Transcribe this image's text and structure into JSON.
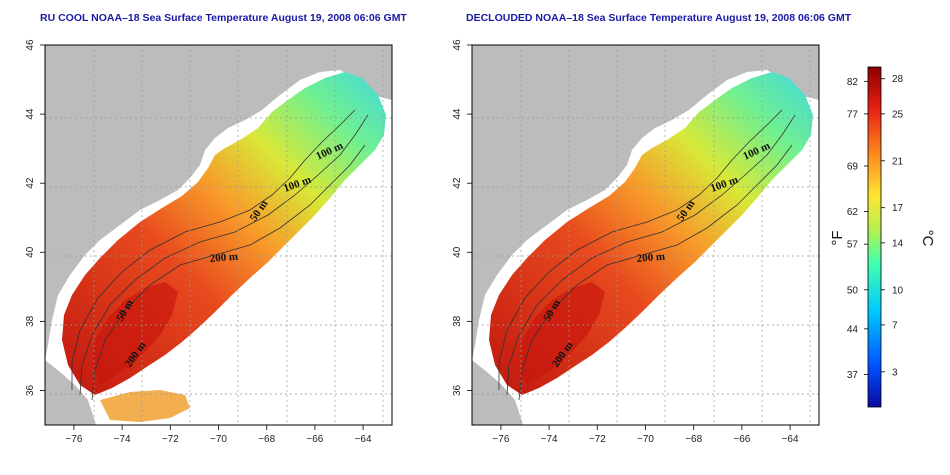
{
  "panels": [
    {
      "title": "RU COOL NOAA–18 Sea Surface Temperature August 19, 2008 06:06 GMT",
      "contour_labels": [
        "100 m",
        "100 m",
        "50 m",
        "200 m",
        "50 m",
        "200 m"
      ]
    },
    {
      "title": "DECLOUDED NOAA–18 Sea Surface Temperature August 19, 2008 06:06 GMT",
      "contour_labels": [
        "100 m",
        "100 m",
        "50 m",
        "200 m",
        "50 m",
        "200 m"
      ]
    }
  ],
  "axes": {
    "x_ticks": [
      "−76",
      "−74",
      "−72",
      "−70",
      "−68",
      "−66",
      "−64"
    ],
    "y_ticks": [
      "36",
      "38",
      "40",
      "42",
      "44",
      "46"
    ],
    "lon_range": [
      -77.2,
      -62.8
    ],
    "lat_range": [
      35.0,
      46.0
    ],
    "grid": "dotted"
  },
  "colorbar": {
    "fahrenheit_ticks": [
      "82",
      "77",
      "69",
      "62",
      "57",
      "50",
      "44",
      "37"
    ],
    "celsius_ticks": [
      "28",
      "25",
      "21",
      "17",
      "14",
      "10",
      "7",
      "3"
    ],
    "fahrenheit_label": "°F",
    "celsius_label": "°C",
    "range_c": [
      0,
      29
    ],
    "colors": [
      "#0a0aa0",
      "#0050ff",
      "#00c8ff",
      "#40ffb0",
      "#b4f050",
      "#ffe632",
      "#ff8c1e",
      "#e61e14",
      "#8c0000"
    ]
  },
  "colors": {
    "land": "#bcbcbc",
    "water_no_data": "#ffffff",
    "title": "#1a1aa6"
  }
}
